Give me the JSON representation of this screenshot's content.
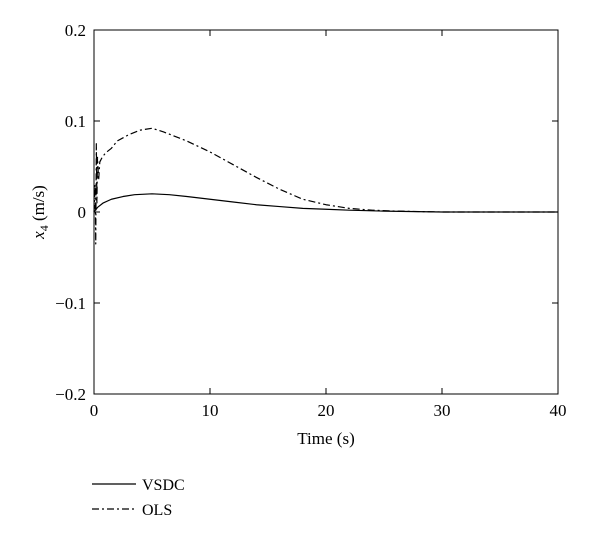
{
  "chart_data": {
    "type": "line",
    "xlabel": "Time (s)",
    "ylabel_var": "x",
    "ylabel_sub": "4",
    "ylabel_unit": " (m/s)",
    "xlim": [
      0,
      40
    ],
    "ylim": [
      -0.2,
      0.2
    ],
    "xticks": [
      0,
      10,
      20,
      30,
      40
    ],
    "xtick_labels": [
      "0",
      "10",
      "20",
      "30",
      "40"
    ],
    "yticks": [
      -0.2,
      -0.1,
      0,
      0.1,
      0.2
    ],
    "ytick_labels": [
      "−0.2",
      "−0.1",
      "0",
      "0.1",
      "0.2"
    ],
    "grid": false,
    "legend_position": "below-left",
    "series": [
      {
        "name": "VSDC",
        "style": "solid",
        "color": "#000000",
        "x": [
          0,
          0.3,
          0.8,
          1.5,
          2.5,
          3.5,
          5,
          6.5,
          8,
          10,
          12,
          14,
          16,
          18,
          20,
          22,
          25,
          30,
          40
        ],
        "y": [
          0.0,
          0.005,
          0.01,
          0.014,
          0.017,
          0.019,
          0.02,
          0.019,
          0.017,
          0.014,
          0.011,
          0.008,
          0.006,
          0.004,
          0.003,
          0.002,
          0.001,
          0.0,
          0.0
        ]
      },
      {
        "name": "OLS",
        "style": "dashdot",
        "color": "#000000",
        "x": [
          0,
          0.1,
          0.15,
          0.2,
          0.25,
          0.3,
          0.4,
          0.5,
          0.7,
          1,
          1.5,
          2,
          3,
          4,
          5,
          6,
          8,
          10,
          12,
          14,
          16,
          18,
          20,
          22,
          24,
          26,
          30,
          40
        ],
        "y": [
          0.0,
          0.03,
          -0.035,
          0.075,
          0.01,
          0.06,
          0.035,
          0.055,
          0.06,
          0.065,
          0.07,
          0.078,
          0.085,
          0.09,
          0.092,
          0.088,
          0.078,
          0.066,
          0.052,
          0.038,
          0.025,
          0.014,
          0.008,
          0.004,
          0.002,
          0.001,
          0.0,
          0.0
        ]
      }
    ]
  }
}
